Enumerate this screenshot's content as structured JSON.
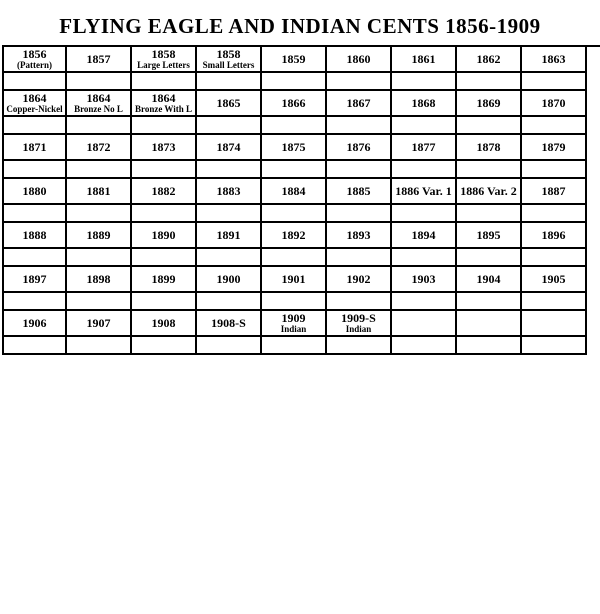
{
  "title": "FLYING EAGLE AND INDIAN CENTS 1856-1909",
  "columns": 9,
  "cell_colors": {
    "border": "#000000",
    "bg": "#ffffff",
    "text": "#000000"
  },
  "typography": {
    "title_fontsize": 21,
    "cell_fontsize": 12,
    "sub_fontsize": 9,
    "family": "Times New Roman"
  },
  "rows": [
    [
      {
        "main": "1856",
        "sub": "(Pattern)"
      },
      {
        "main": "1857"
      },
      {
        "main": "1858",
        "sub": "Large Letters"
      },
      {
        "main": "1858",
        "sub": "Small Letters"
      },
      {
        "main": "1859"
      },
      {
        "main": "1860"
      },
      {
        "main": "1861"
      },
      {
        "main": "1862"
      },
      {
        "main": "1863"
      }
    ],
    [
      {
        "main": "1864",
        "sub": "Copper-Nickel"
      },
      {
        "main": "1864",
        "sub": "Bronze No L"
      },
      {
        "main": "1864",
        "sub": "Bronze With L"
      },
      {
        "main": "1865"
      },
      {
        "main": "1866"
      },
      {
        "main": "1867"
      },
      {
        "main": "1868"
      },
      {
        "main": "1869"
      },
      {
        "main": "1870"
      }
    ],
    [
      {
        "main": "1871"
      },
      {
        "main": "1872"
      },
      {
        "main": "1873"
      },
      {
        "main": "1874"
      },
      {
        "main": "1875"
      },
      {
        "main": "1876"
      },
      {
        "main": "1877"
      },
      {
        "main": "1878"
      },
      {
        "main": "1879"
      }
    ],
    [
      {
        "main": "1880"
      },
      {
        "main": "1881"
      },
      {
        "main": "1882"
      },
      {
        "main": "1883"
      },
      {
        "main": "1884"
      },
      {
        "main": "1885"
      },
      {
        "main": "1886 Var. 1"
      },
      {
        "main": "1886 Var. 2"
      },
      {
        "main": "1887"
      }
    ],
    [
      {
        "main": "1888"
      },
      {
        "main": "1889"
      },
      {
        "main": "1890"
      },
      {
        "main": "1891"
      },
      {
        "main": "1892"
      },
      {
        "main": "1893"
      },
      {
        "main": "1894"
      },
      {
        "main": "1895"
      },
      {
        "main": "1896"
      }
    ],
    [
      {
        "main": "1897"
      },
      {
        "main": "1898"
      },
      {
        "main": "1899"
      },
      {
        "main": "1900"
      },
      {
        "main": "1901"
      },
      {
        "main": "1902"
      },
      {
        "main": "1903"
      },
      {
        "main": "1904"
      },
      {
        "main": "1905"
      }
    ],
    [
      {
        "main": "1906"
      },
      {
        "main": "1907"
      },
      {
        "main": "1908"
      },
      {
        "main": "1908-S"
      },
      {
        "main": "1909",
        "sub": "Indian"
      },
      {
        "main": "1909-S",
        "sub": "Indian"
      },
      {
        "main": ""
      },
      {
        "main": ""
      },
      {
        "main": ""
      }
    ]
  ]
}
